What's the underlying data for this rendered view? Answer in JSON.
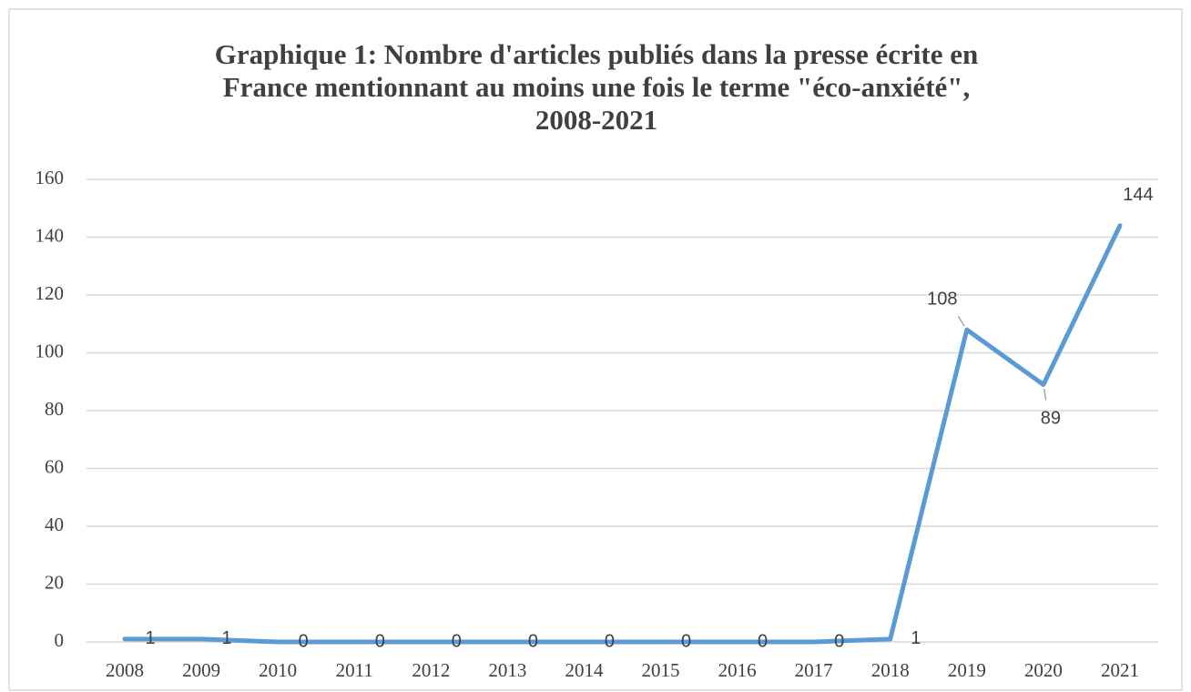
{
  "chart_data": {
    "type": "line",
    "title": [
      "Graphique 1: Nombre d'articles publiés dans la presse écrite en",
      "France mentionnant au moins une fois le terme \"éco-anxiété\",",
      "2008-2021"
    ],
    "categories": [
      "2008",
      "2009",
      "2010",
      "2011",
      "2012",
      "2013",
      "2014",
      "2015",
      "2016",
      "2017",
      "2018",
      "2019",
      "2020",
      "2021"
    ],
    "values": [
      1,
      1,
      0,
      0,
      0,
      0,
      0,
      0,
      0,
      0,
      1,
      108,
      89,
      144
    ],
    "color": "#5b9bd5",
    "ylim": [
      0,
      160
    ],
    "yticks": [
      0,
      20,
      40,
      60,
      80,
      100,
      120,
      140,
      160
    ],
    "grid": true
  }
}
